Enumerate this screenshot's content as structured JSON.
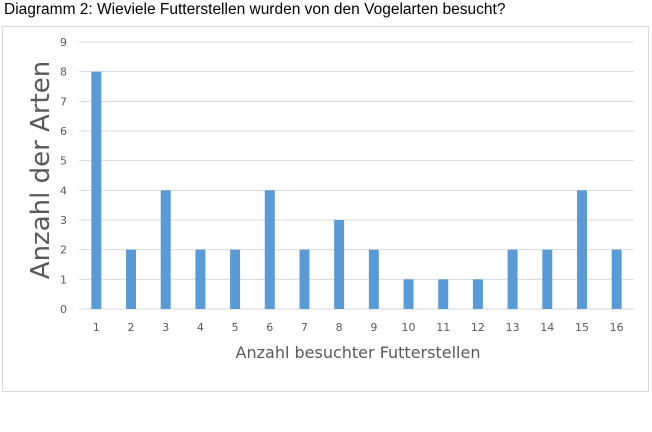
{
  "chart_data": {
    "type": "bar",
    "title": "Diagramm 2: Wieviele Futterstellen wurden von den Vogelarten besucht?",
    "xlabel": "Anzahl besuchter Futterstellen",
    "ylabel": "Anzahl der Arten",
    "categories": [
      "1",
      "2",
      "3",
      "4",
      "5",
      "6",
      "7",
      "8",
      "9",
      "10",
      "11",
      "12",
      "13",
      "14",
      "15",
      "16"
    ],
    "values": [
      8,
      2,
      4,
      2,
      2,
      4,
      2,
      3,
      2,
      1,
      1,
      1,
      2,
      2,
      4,
      2
    ],
    "ylim": [
      0,
      9
    ],
    "yticks": [
      "0",
      "1",
      "2",
      "3",
      "4",
      "5",
      "6",
      "7",
      "8",
      "9"
    ],
    "grid": true,
    "legend": "none",
    "colors": {
      "bar": "#5b9bd5",
      "grid": "#d9d9d9",
      "text": "#595959"
    }
  }
}
